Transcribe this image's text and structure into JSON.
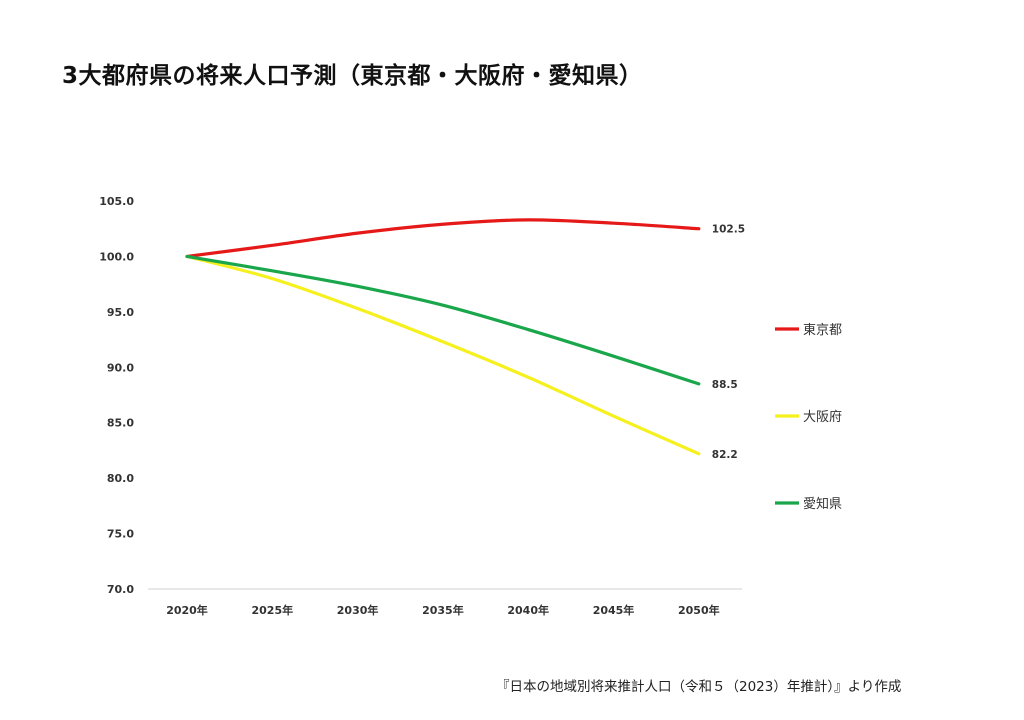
{
  "chart_data": {
    "type": "line",
    "title": "3大都府県の将来人口予測（東京都・大阪府・愛知県）",
    "categories": [
      "2020年",
      "2025年",
      "2030年",
      "2035年",
      "2040年",
      "2045年",
      "2050年"
    ],
    "ylim": [
      70.0,
      105.0
    ],
    "yticks": [
      "105.0",
      "100.0",
      "95.0",
      "90.0",
      "85.0",
      "80.0",
      "75.0",
      "70.0"
    ],
    "grid": false,
    "legend_position": "right",
    "series": [
      {
        "name": "東京都",
        "color": "#e61919",
        "values": [
          100.0,
          101.0,
          102.1,
          102.9,
          103.3,
          103.0,
          102.5
        ],
        "end_label": "102.5"
      },
      {
        "name": "大阪府",
        "color": "#f5f01e",
        "values": [
          100.0,
          98.0,
          95.3,
          92.3,
          89.1,
          85.6,
          82.2
        ],
        "end_label": "82.2"
      },
      {
        "name": "愛知県",
        "color": "#1aa64b",
        "values": [
          100.0,
          98.7,
          97.3,
          95.6,
          93.4,
          91.0,
          88.5
        ],
        "end_label": "88.5"
      }
    ]
  },
  "source_note": "『日本の地域別将来推計人口（令和５（2023）年推計）』より作成"
}
